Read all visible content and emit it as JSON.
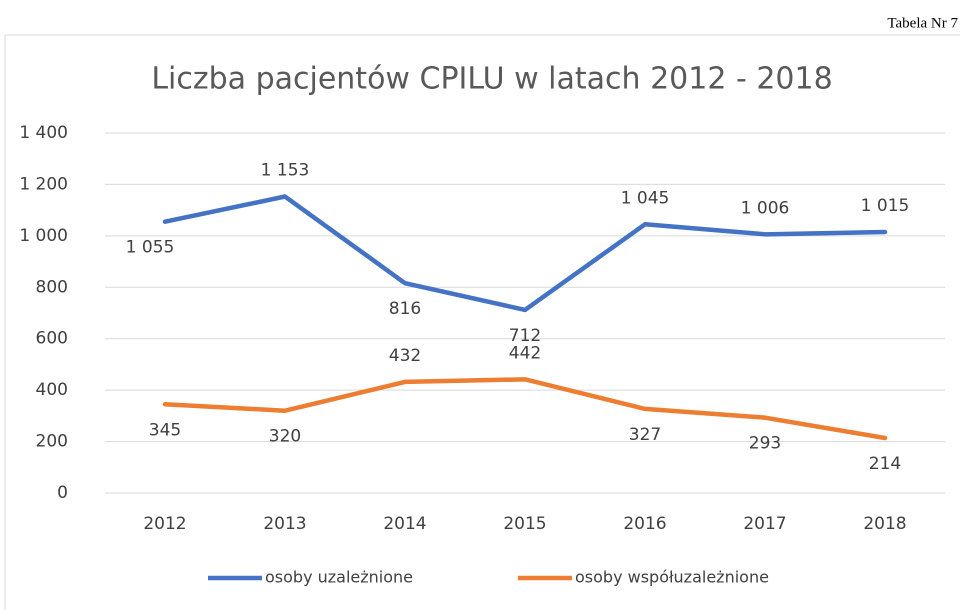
{
  "note_top": "Tabela Nr 7",
  "chart_data": {
    "type": "line",
    "title": "Liczba pacjentów CPILU w latach 2012 - 2018",
    "categories": [
      "2012",
      "2013",
      "2014",
      "2015",
      "2016",
      "2017",
      "2018"
    ],
    "series": [
      {
        "name": "osoby uzależnione",
        "color": "#4472c4",
        "values": [
          1055,
          1153,
          816,
          712,
          1045,
          1006,
          1015
        ],
        "value_labels": [
          "1 055",
          "1 153",
          "816",
          "712",
          "1 045",
          "1 006",
          "1 015"
        ]
      },
      {
        "name": "osoby współuzależnione",
        "color": "#ed7d31",
        "values": [
          345,
          320,
          432,
          442,
          327,
          293,
          214
        ]
      }
    ],
    "ylim": [
      0,
      1400
    ],
    "yticks": [
      0,
      200,
      400,
      600,
      800,
      {
        "value": 1000,
        "label": "1 000"
      },
      {
        "value": 1200,
        "label": "1 200"
      },
      {
        "value": 1400,
        "label": "1 400"
      }
    ],
    "grid": true,
    "legend": "bottom"
  }
}
